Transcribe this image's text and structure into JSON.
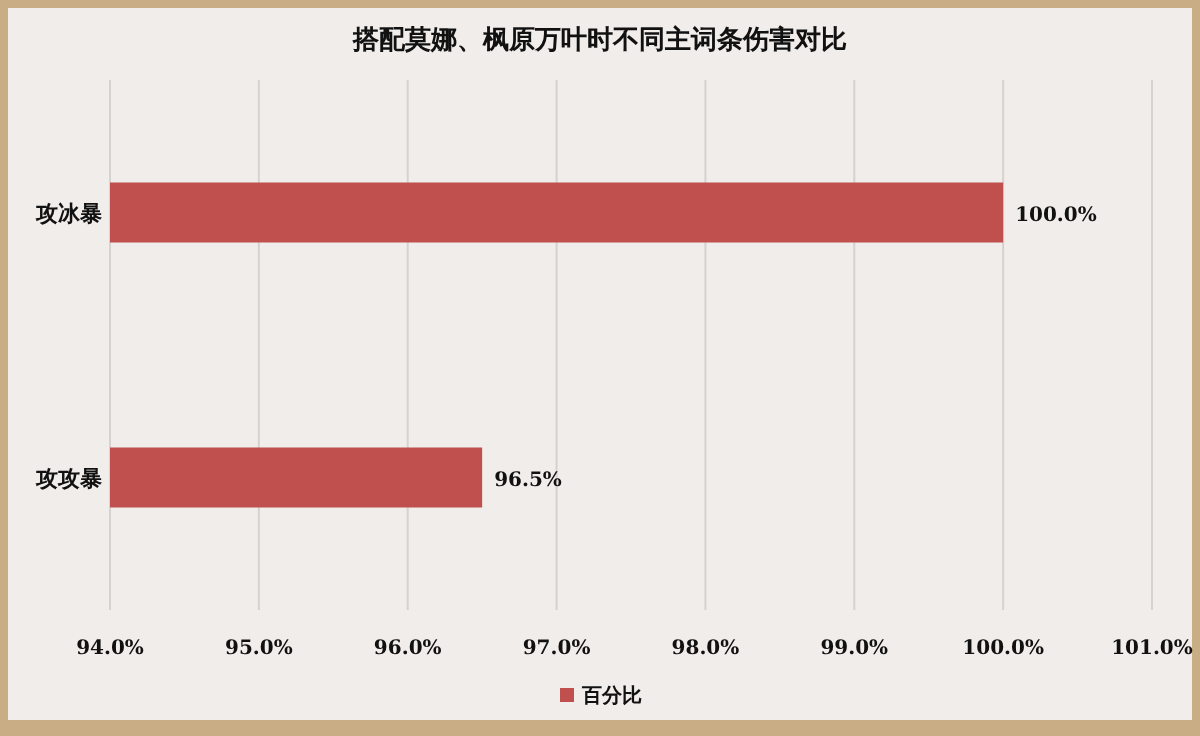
{
  "chart_data": {
    "type": "bar",
    "orientation": "horizontal",
    "title": "搭配莫娜、枫原万叶时不同主词条伤害对比",
    "categories": [
      "攻冰暴",
      "攻攻暴"
    ],
    "series": [
      {
        "name": "百分比",
        "color": "#c0504d",
        "values": [
          100.0,
          96.5
        ],
        "value_labels": [
          "100.0%",
          "96.5%"
        ]
      }
    ],
    "xlim": [
      94,
      101
    ],
    "xticks": [
      {
        "value": 94,
        "label": "94.0%"
      },
      {
        "value": 95,
        "label": "95.0%"
      },
      {
        "value": 96,
        "label": "96.0%"
      },
      {
        "value": 97,
        "label": "97.0%"
      },
      {
        "value": 98,
        "label": "98.0%"
      },
      {
        "value": 99,
        "label": "99.0%"
      },
      {
        "value": 100,
        "label": "100.0%"
      },
      {
        "value": 101,
        "label": "101.0%"
      }
    ],
    "grid": "x",
    "legend": "bottom"
  }
}
